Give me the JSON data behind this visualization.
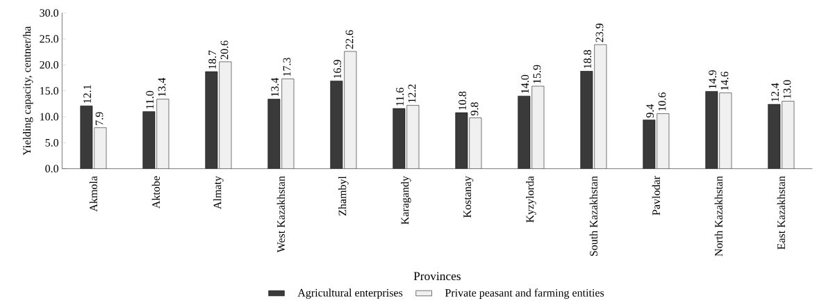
{
  "chart_data": {
    "type": "bar",
    "xlabel": "Provinces",
    "ylabel": "Yielding capacity, centner/ha",
    "categories": [
      "Akmola",
      "Aktobe",
      "Almaty",
      "West Kazakhstan",
      "Zhambyl",
      "Karagandy",
      "Kostanay",
      "Kyzylorda",
      "South Kazakhstan",
      "Pavlodar",
      "North Kazakhstan",
      "East Kazakhstan"
    ],
    "series": [
      {
        "name": "Agricultural enterprises",
        "color": "#3a3a3a",
        "values": [
          12.1,
          11.0,
          18.7,
          13.4,
          16.9,
          11.6,
          10.8,
          14.0,
          18.8,
          9.4,
          14.9,
          12.4
        ],
        "value_labels": [
          "12.1",
          "11.0",
          "18.7",
          "13.4",
          "16.9",
          "11.6",
          "10.8",
          "14.0",
          "18.8",
          "9.4",
          "14.9",
          "12.4"
        ]
      },
      {
        "name": "Private peasant and farming entities",
        "color": "#f0f0f0",
        "values": [
          7.9,
          13.4,
          20.6,
          17.3,
          22.6,
          12.2,
          9.8,
          15.9,
          23.9,
          10.6,
          14.6,
          13.0
        ],
        "value_labels": [
          "7.9",
          "13.4",
          "20.6",
          "17.3",
          "22.6",
          "12.2",
          "9.8",
          "15.9",
          "23.9",
          "10.6",
          "14.6",
          "13.0"
        ]
      }
    ],
    "ylim": [
      0,
      30
    ],
    "yticks": [
      {
        "value": 0,
        "label": "0.0"
      },
      {
        "value": 5,
        "label": "5.0"
      },
      {
        "value": 10,
        "label": "10.0"
      },
      {
        "value": 15,
        "label": "15.0"
      },
      {
        "value": 20,
        "label": "20.0"
      },
      {
        "value": 25,
        "label": "25.0"
      },
      {
        "value": 30,
        "label": "30.0"
      }
    ],
    "grid": false,
    "legend": "bottom"
  }
}
